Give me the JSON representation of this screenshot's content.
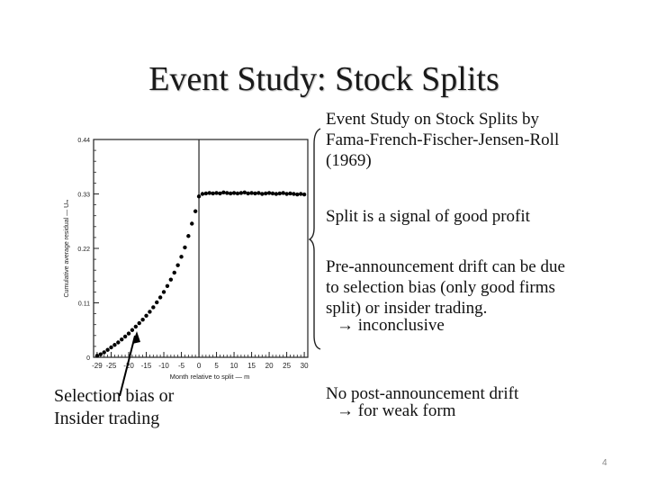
{
  "slide": {
    "title": "Event Study: Stock Splits",
    "page_number": "4"
  },
  "right_panel": {
    "block1": [
      "Event Study on Stock Splits by",
      "Fama-French-Fischer-Jensen-Roll",
      "(1969)"
    ],
    "block2": "Split is a signal of good profit",
    "block3": [
      "Pre-announcement drift can be due",
      "to selection bias (only good firms",
      "split) or insider trading."
    ],
    "block3_arrow": "→ inconclusive",
    "block4": "No post-announcement drift",
    "block4_arrow": "→ for weak form"
  },
  "left_note": [
    "Selection bias or",
    "Insider trading"
  ],
  "chart_data": {
    "type": "scatter",
    "xlabel": "Month relative to split — m",
    "ylabel": "Cumulative average residual — Uₘ",
    "xlim": [
      -30,
      31
    ],
    "ylim": [
      0,
      0.44
    ],
    "x_ticks": [
      -29,
      -25,
      -20,
      -15,
      -10,
      -5,
      0,
      5,
      10,
      15,
      20,
      25,
      30
    ],
    "y_ticks": [
      0,
      0.11,
      0.22,
      0.33,
      0.44
    ],
    "y_tick_labels": [
      "0",
      "0.11",
      "0.22",
      "0.33",
      "0.44"
    ],
    "event_line_x": 0,
    "x": [
      -29,
      -28,
      -27,
      -26,
      -25,
      -24,
      -23,
      -22,
      -21,
      -20,
      -19,
      -18,
      -17,
      -16,
      -15,
      -14,
      -13,
      -12,
      -11,
      -10,
      -9,
      -8,
      -7,
      -6,
      -5,
      -4,
      -3,
      -2,
      -1,
      0,
      1,
      2,
      3,
      4,
      5,
      6,
      7,
      8,
      9,
      10,
      11,
      12,
      13,
      14,
      15,
      16,
      17,
      18,
      19,
      20,
      21,
      22,
      23,
      24,
      25,
      26,
      27,
      28,
      29,
      30
    ],
    "y": [
      0.003,
      0.006,
      0.01,
      0.015,
      0.02,
      0.025,
      0.03,
      0.036,
      0.042,
      0.048,
      0.055,
      0.062,
      0.069,
      0.076,
      0.084,
      0.092,
      0.101,
      0.111,
      0.121,
      0.132,
      0.144,
      0.157,
      0.171,
      0.186,
      0.203,
      0.222,
      0.245,
      0.27,
      0.295,
      0.325,
      0.33,
      0.331,
      0.332,
      0.331,
      0.332,
      0.331,
      0.333,
      0.332,
      0.331,
      0.332,
      0.331,
      0.332,
      0.333,
      0.331,
      0.332,
      0.331,
      0.332,
      0.33,
      0.331,
      0.332,
      0.331,
      0.33,
      0.331,
      0.332,
      0.33,
      0.331,
      0.33,
      0.329,
      0.33,
      0.329
    ]
  }
}
